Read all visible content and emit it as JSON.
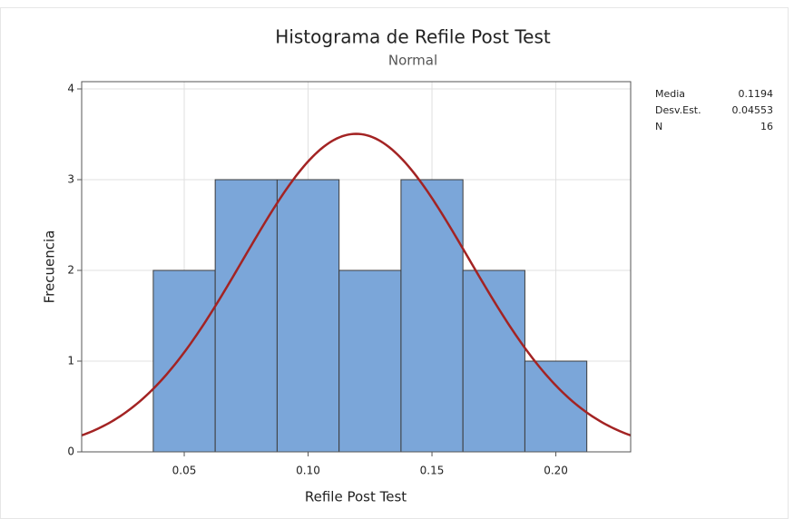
{
  "chart_data": {
    "type": "histogram",
    "title": "Histograma de Refile Post Test",
    "subtitle": "Normal",
    "x_label": "Refile Post Test",
    "y_label": "Frecuencia",
    "bins": [
      0.0375,
      0.0625,
      0.0875,
      0.1125,
      0.1375,
      0.1625,
      0.1875,
      0.2125
    ],
    "values": [
      2,
      3,
      3,
      2,
      3,
      2,
      1
    ],
    "color": "#7ba6d9",
    "edge_color": "#3c3c3c",
    "curve_color": "#a32323",
    "xlim": [
      0.0086,
      0.2302
    ],
    "ylim": [
      0,
      4.08
    ],
    "xticks": [
      0.05,
      {
        "value": 0.1,
        "label": "0.10"
      },
      0.15,
      {
        "value": 0.2,
        "label": "0.20"
      }
    ],
    "yticks": [
      0,
      1,
      2,
      3,
      4
    ],
    "grid": true,
    "stats": [
      {
        "label": "Media",
        "value": 0.1194
      },
      {
        "label": "Desv.Est.",
        "value": 0.04553
      },
      {
        "label": "N",
        "value": 16
      }
    ]
  }
}
